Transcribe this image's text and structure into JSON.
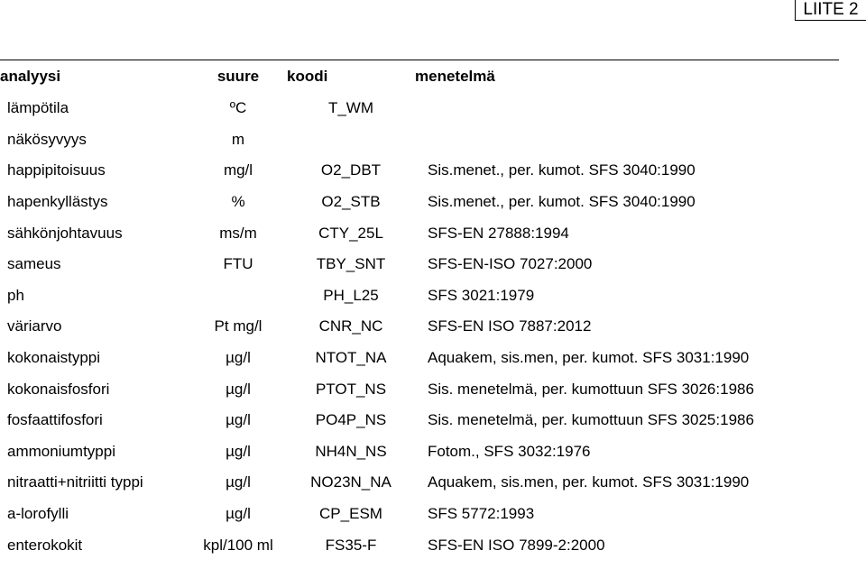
{
  "page": {
    "corner_label": "LIITE 2"
  },
  "table": {
    "headers": {
      "analyysi": "analyysi",
      "suure": "suure",
      "koodi": "koodi",
      "menetelma": "menetelmä"
    },
    "rows": [
      {
        "analyysi": "lämpötila",
        "suure": "ºC",
        "koodi": "T_WM",
        "menetelma": ""
      },
      {
        "analyysi": "näkösyvyys",
        "suure": "m",
        "koodi": "",
        "menetelma": ""
      },
      {
        "analyysi": "happipitoisuus",
        "suure": "mg/l",
        "koodi": "O2_DBT",
        "menetelma": "Sis.menet., per. kumot. SFS 3040:1990"
      },
      {
        "analyysi": "hapenkyllästys",
        "suure": "%",
        "koodi": "O2_STB",
        "menetelma": "Sis.menet., per. kumot. SFS 3040:1990"
      },
      {
        "analyysi": "sähkönjohtavuus",
        "suure": "ms/m",
        "koodi": "CTY_25L",
        "menetelma": "SFS-EN 27888:1994"
      },
      {
        "analyysi": "sameus",
        "suure": "FTU",
        "koodi": "TBY_SNT",
        "menetelma": "SFS-EN-ISO 7027:2000"
      },
      {
        "analyysi": "ph",
        "suure": "",
        "koodi": "PH_L25",
        "menetelma": "SFS 3021:1979"
      },
      {
        "analyysi": "väriarvo",
        "suure": "Pt mg/l",
        "koodi": "CNR_NC",
        "menetelma": "SFS-EN ISO 7887:2012"
      },
      {
        "analyysi": "kokonaistyppi",
        "suure": "µg/l",
        "koodi": "NTOT_NA",
        "menetelma": "Aquakem, sis.men, per. kumot. SFS 3031:1990"
      },
      {
        "analyysi": "kokonaisfosfori",
        "suure": "µg/l",
        "koodi": "PTOT_NS",
        "menetelma": "Sis. menetelmä, per. kumottuun SFS 3026:1986"
      },
      {
        "analyysi": "fosfaattifosfori",
        "suure": "µg/l",
        "koodi": "PO4P_NS",
        "menetelma": "Sis. menetelmä, per. kumottuun SFS 3025:1986"
      },
      {
        "analyysi": "ammoniumtyppi",
        "suure": "µg/l",
        "koodi": "NH4N_NS",
        "menetelma": "Fotom., SFS 3032:1976"
      },
      {
        "analyysi": "nitraatti+nitriitti typpi",
        "suure": "µg/l",
        "koodi": "NO23N_NA",
        "menetelma": "Aquakem, sis.men, per. kumot. SFS 3031:1990"
      },
      {
        "analyysi": "a-lorofylli",
        "suure": "µg/l",
        "koodi": "CP_ESM",
        "menetelma": "SFS 5772:1993"
      },
      {
        "analyysi": "enterokokit",
        "suure": "kpl/100 ml",
        "koodi": "FS35-F",
        "menetelma": "SFS-EN ISO 7899-2:2000"
      }
    ]
  }
}
